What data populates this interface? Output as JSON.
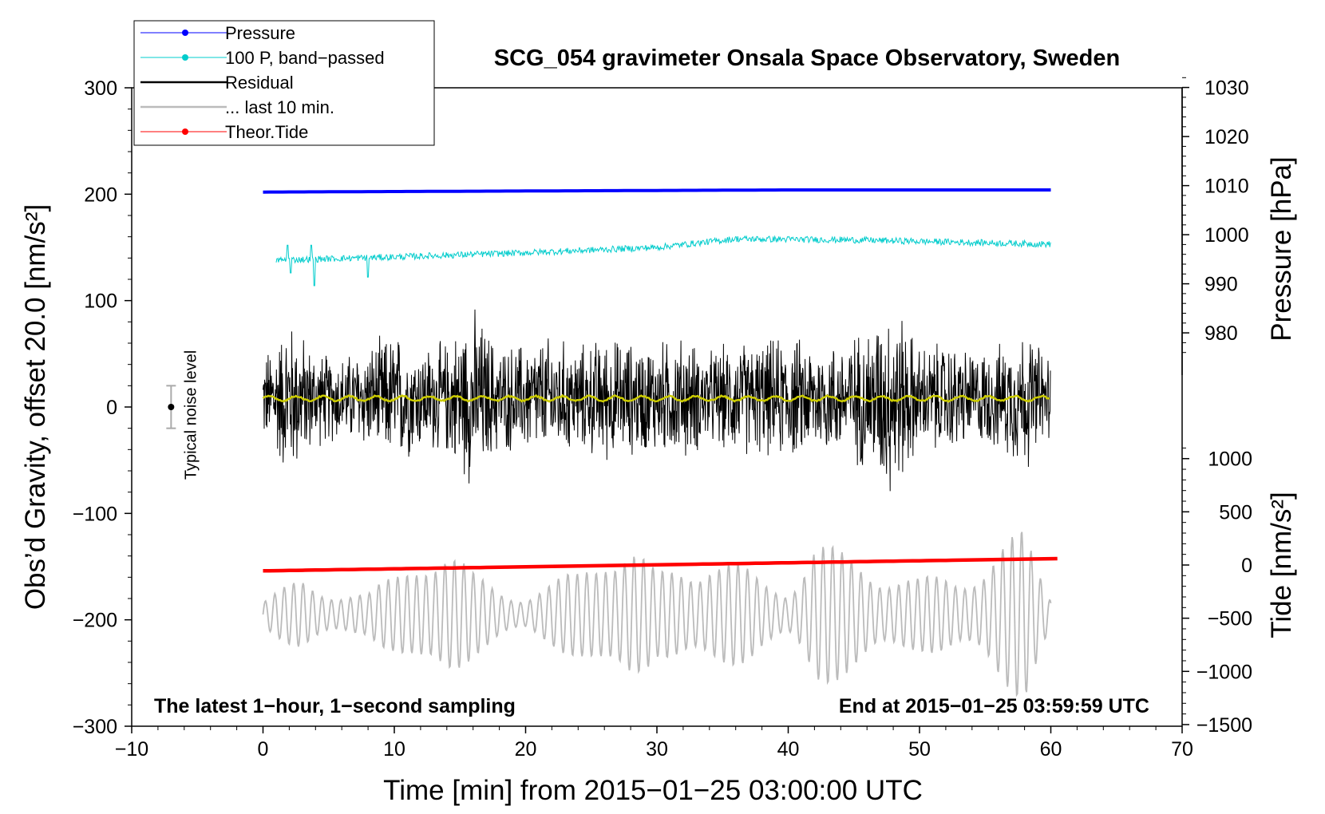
{
  "chart_data": {
    "type": "line",
    "title": "SCG_054 gravimeter Onsala Space Observatory, Sweden",
    "xlabel": "Time [min] from 2015−01−25 03:00:00 UTC",
    "ylabel": "Obs’d Gravity, offset 20.0 [nm/s²]",
    "xlim": [
      -10,
      70
    ],
    "ylim": [
      -300,
      300
    ],
    "x_ticks": [
      "−10",
      "0",
      "10",
      "20",
      "30",
      "40",
      "50",
      "60",
      "70"
    ],
    "y_ticks": [
      "−300",
      "−200",
      "−100",
      "0",
      "100",
      "200",
      "300"
    ],
    "right_axis_pressure": {
      "label": "Pressure [hPa]",
      "ticks": [
        "980",
        "990",
        "1000",
        "1010",
        "1020",
        "1030"
      ]
    },
    "right_axis_tide": {
      "label": "Tide [nm/s²]",
      "ticks": [
        "−1500",
        "−1000",
        "−500",
        "0",
        "500",
        "1000"
      ]
    },
    "legend": [
      {
        "label": "Pressure",
        "color": "#0000ff",
        "marker": true
      },
      {
        "label": "100 P, band−passed",
        "color": "#00cccc",
        "marker": true
      },
      {
        "label": "Residual",
        "color": "#000000",
        "marker": false
      },
      {
        "label": "... last 10 min.",
        "color": "#bbbbbb",
        "marker": false
      },
      {
        "label": "Theor.Tide",
        "color": "#ff0000",
        "marker": true
      }
    ],
    "annotations": {
      "left": "The latest 1−hour, 1−second sampling",
      "right": "End at 2015−01−25 03:59:59 UTC",
      "noise": "Typical noise level"
    },
    "noise_bar": {
      "x": -7,
      "center": 0,
      "half_range": 20
    },
    "series": [
      {
        "name": "Pressure",
        "color": "#0000ff",
        "axis": "left",
        "x_range": [
          0,
          60
        ],
        "points": [
          [
            0,
            202
          ],
          [
            20,
            203
          ],
          [
            40,
            204
          ],
          [
            60,
            204
          ]
        ]
      },
      {
        "name": "100 P, band−passed",
        "color": "#00cccc",
        "axis": "left",
        "x_range": [
          1,
          60
        ],
        "points": [
          [
            1,
            138
          ],
          [
            10,
            141
          ],
          [
            20,
            145
          ],
          [
            30,
            150
          ],
          [
            36,
            158
          ],
          [
            45,
            157
          ],
          [
            60,
            153
          ]
        ],
        "noise_amplitude": 3
      },
      {
        "name": "Residual",
        "color": "#000000",
        "axis": "left",
        "x_range": [
          0,
          60
        ],
        "envelope": [
          [
            0,
            45
          ],
          [
            2,
            85
          ],
          [
            4,
            50
          ],
          [
            6,
            45
          ],
          [
            8,
            55
          ],
          [
            10,
            70
          ],
          [
            12,
            55
          ],
          [
            14,
            60
          ],
          [
            16,
            95
          ],
          [
            18,
            55
          ],
          [
            20,
            60
          ],
          [
            22,
            65
          ],
          [
            24,
            55
          ],
          [
            26,
            65
          ],
          [
            28,
            60
          ],
          [
            30,
            60
          ],
          [
            32,
            65
          ],
          [
            34,
            50
          ],
          [
            36,
            60
          ],
          [
            38,
            60
          ],
          [
            40,
            65
          ],
          [
            42,
            60
          ],
          [
            44,
            60
          ],
          [
            46,
            75
          ],
          [
            48,
            105
          ],
          [
            50,
            55
          ],
          [
            52,
            60
          ],
          [
            54,
            50
          ],
          [
            56,
            55
          ],
          [
            58,
            75
          ],
          [
            60,
            45
          ]
        ]
      },
      {
        "name": "Residual smoothed",
        "color": "#cccc00",
        "axis": "left",
        "x_range": [
          0,
          60
        ],
        "level": 8
      },
      {
        "name": "... last 10 min.",
        "color": "#bbbbbb",
        "axis": "left",
        "x_range": [
          0,
          60
        ],
        "center": -195,
        "envelope": [
          [
            0,
            15
          ],
          [
            3,
            35
          ],
          [
            6,
            25
          ],
          [
            8,
            20
          ],
          [
            10,
            40
          ],
          [
            12,
            75
          ],
          [
            14,
            65
          ],
          [
            16,
            40
          ],
          [
            18,
            30
          ],
          [
            20,
            20
          ],
          [
            22,
            30
          ],
          [
            24,
            45
          ],
          [
            26,
            80
          ],
          [
            28,
            70
          ],
          [
            30,
            40
          ],
          [
            32,
            55
          ],
          [
            34,
            65
          ],
          [
            36,
            50
          ],
          [
            38,
            35
          ],
          [
            40,
            30
          ],
          [
            42,
            75
          ],
          [
            44,
            60
          ],
          [
            46,
            55
          ],
          [
            48,
            45
          ],
          [
            50,
            35
          ],
          [
            53,
            40
          ],
          [
            56,
            70
          ],
          [
            58,
            80
          ],
          [
            60,
            20
          ]
        ]
      },
      {
        "name": "Theor.Tide",
        "color": "#ff0000",
        "axis": "tide",
        "x_range": [
          0,
          60.5
        ],
        "points": [
          [
            0,
            -55
          ],
          [
            60.5,
            60
          ]
        ]
      }
    ]
  }
}
